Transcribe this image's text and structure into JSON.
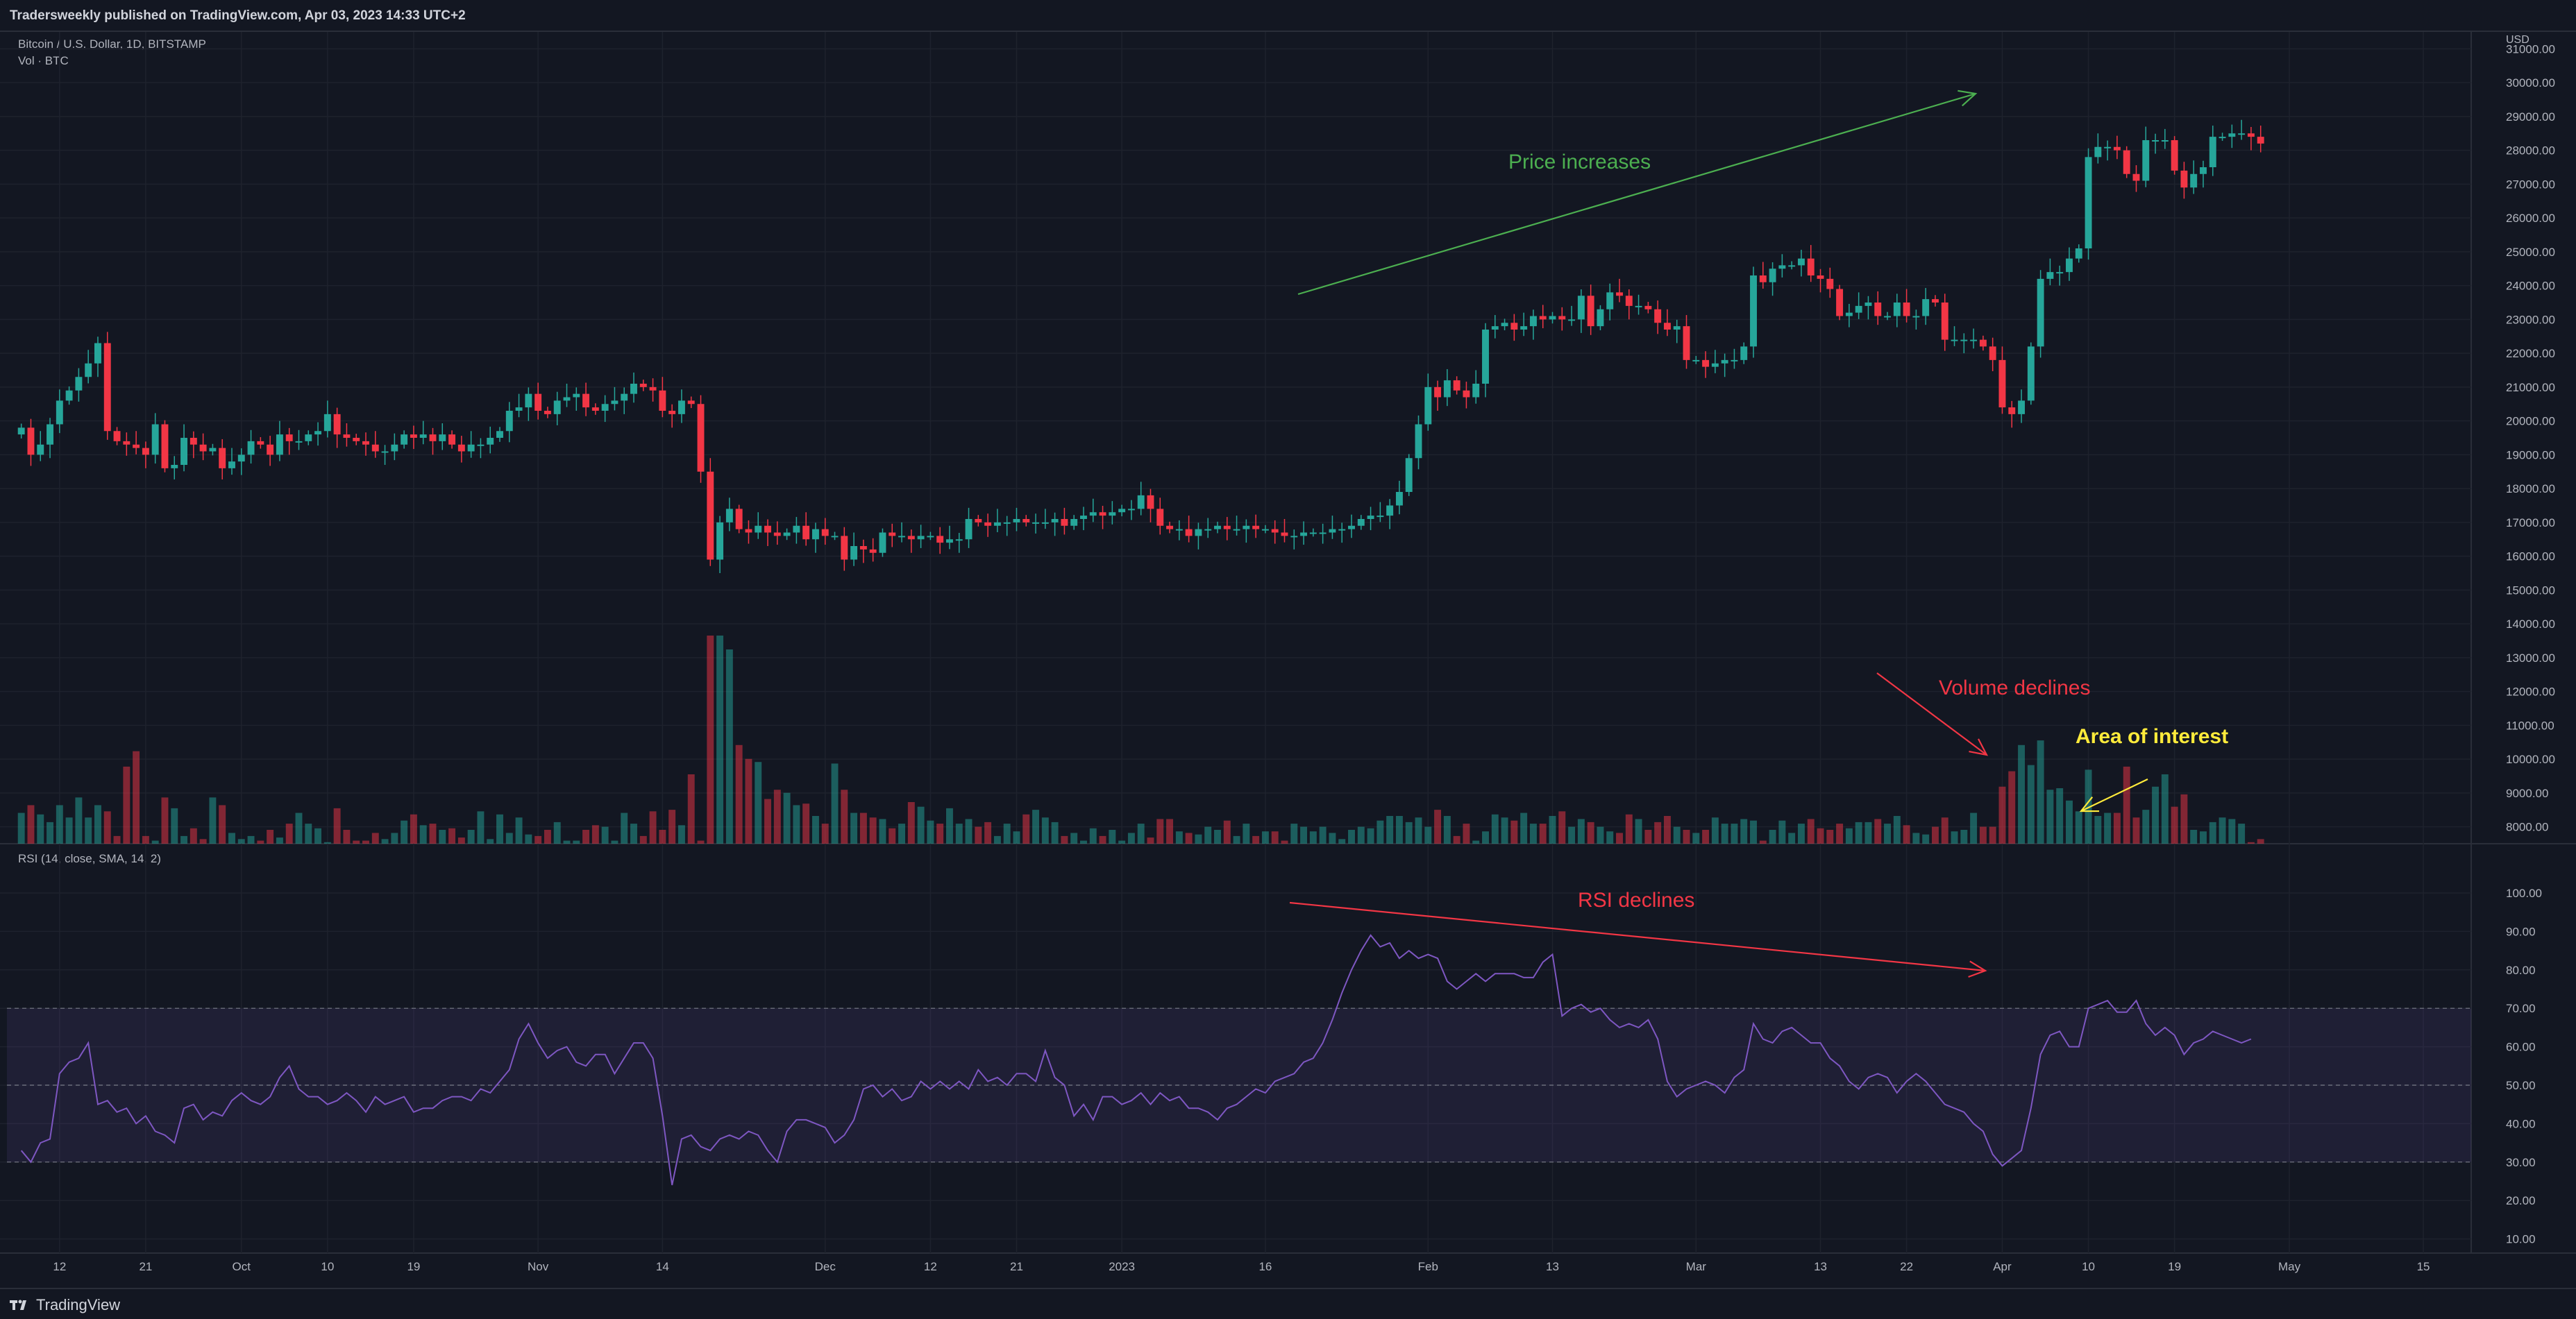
{
  "header": {
    "publish_text": "Tradersweekly published on TradingView.com, Apr 03, 2023 14:33 UTC+2"
  },
  "legend": {
    "symbol": "Bitcoin / U.S. Dollar, 1D, BITSTAMP",
    "volume": "Vol · BTC",
    "rsi": "RSI (14, close, SMA, 14, 2)"
  },
  "footer": {
    "logo_text": "TradingView"
  },
  "colors": {
    "background": "#131722",
    "up": "#26a69a",
    "down": "#f23645",
    "rsi_line": "#7e57c2",
    "annotation_green": "#4caf50",
    "annotation_red": "#f23645",
    "annotation_yellow": "#ffeb3b"
  },
  "chart_data": [
    {
      "type": "candlestick",
      "currency": "USD",
      "ylim": [
        7500,
        31500
      ],
      "y_ticks": [
        "31000.00",
        "30000.00",
        "29000.00",
        "28000.00",
        "27000.00",
        "26000.00",
        "25000.00",
        "24000.00",
        "23000.00",
        "22000.00",
        "21000.00",
        "20000.00",
        "19000.00",
        "18000.00",
        "17000.00",
        "16000.00",
        "15000.00",
        "14000.00",
        "13000.00",
        "12000.00",
        "11000.00",
        "10000.00",
        "9000.00",
        "8000.00"
      ],
      "y_tick_values": [
        31000,
        30000,
        29000,
        28000,
        27000,
        26000,
        25000,
        24000,
        23000,
        22000,
        21000,
        20000,
        19000,
        18000,
        17000,
        16000,
        15000,
        14000,
        13000,
        12000,
        11000,
        10000,
        9000,
        8000
      ],
      "x_ticks": [
        "12",
        "21",
        "Oct",
        "10",
        "19",
        "Nov",
        "14",
        "Dec",
        "12",
        "21",
        "2023",
        "16",
        "Feb",
        "13",
        "Mar",
        "13",
        "22",
        "Apr",
        "10",
        "19",
        "May",
        "15"
      ],
      "x_tick_days": [
        4,
        13,
        23,
        32,
        41,
        54,
        67,
        84,
        95,
        104,
        115,
        130,
        147,
        160,
        175,
        188,
        197,
        207,
        216,
        225,
        237,
        251
      ],
      "x_domain": [
        -1.5,
        256
      ],
      "closes": [
        19800,
        19000,
        19300,
        19900,
        20600,
        20900,
        21300,
        21700,
        22300,
        19700,
        19400,
        19300,
        19200,
        19000,
        19900,
        18600,
        18700,
        19500,
        19300,
        19100,
        19200,
        18600,
        18800,
        19000,
        19400,
        19300,
        19000,
        19600,
        19400,
        19400,
        19600,
        19700,
        20200,
        19600,
        19500,
        19400,
        19300,
        19100,
        19100,
        19300,
        19600,
        19500,
        19600,
        19400,
        19600,
        19300,
        19100,
        19300,
        19300,
        19500,
        19700,
        20300,
        20400,
        20800,
        20300,
        20200,
        20600,
        20700,
        20800,
        20400,
        20300,
        20500,
        20600,
        20800,
        21100,
        21000,
        20900,
        20300,
        20200,
        20600,
        20500,
        18500,
        15900,
        17000,
        17400,
        16800,
        16700,
        16900,
        16700,
        16600,
        16700,
        16900,
        16500,
        16800,
        16600,
        16600,
        15900,
        16300,
        16200,
        16100,
        16700,
        16600,
        16600,
        16500,
        16600,
        16600,
        16400,
        16500,
        16500,
        17100,
        17000,
        16900,
        17000,
        17000,
        17100,
        17000,
        17000,
        17000,
        17100,
        16900,
        17100,
        17200,
        17300,
        17200,
        17300,
        17400,
        17400,
        17800,
        17400,
        16900,
        16800,
        16800,
        16600,
        16800,
        16800,
        16900,
        16800,
        16800,
        16900,
        16800,
        16800,
        16700,
        16600,
        16600,
        16700,
        16700,
        16700,
        16800,
        16800,
        16900,
        17100,
        17200,
        17200,
        17500,
        17900,
        18900,
        19900,
        21000,
        20700,
        21200,
        20900,
        20700,
        21100,
        22700,
        22800,
        22900,
        22700,
        22800,
        23100,
        23000,
        23100,
        23000,
        23000,
        23700,
        22800,
        23300,
        23800,
        23700,
        23400,
        23400,
        23300,
        22900,
        22700,
        22800,
        21800,
        21800,
        21600,
        21700,
        21800,
        21800,
        22200,
        24300,
        24100,
        24500,
        24600,
        24600,
        24800,
        24300,
        24200,
        23900,
        23100,
        23200,
        23400,
        23500,
        23100,
        23100,
        23500,
        23100,
        23100,
        23600,
        23500,
        22400,
        22400,
        22400,
        22400,
        22200,
        21800,
        20400,
        20200,
        20600,
        22200,
        24200,
        24400,
        24400,
        24800,
        25100,
        27800,
        28100,
        28100,
        28000,
        27300,
        27100,
        28300,
        28300,
        28300,
        27400,
        26900,
        27300,
        27500,
        28400,
        28400,
        28500,
        28500,
        28400,
        28200
      ],
      "annotations": [
        "Price increases",
        "Volume declines",
        "Area of interest"
      ]
    },
    {
      "type": "bar",
      "series": [
        {
          "name": "Vol · BTC",
          "values": [
            9500,
            10000,
            9400,
            8900,
            10000,
            9200,
            10500,
            9200,
            10000,
            9600,
            8000,
            12500,
            13500,
            8000,
            7700,
            10500,
            9800,
            8000,
            8500,
            7800,
            10500,
            10000,
            8200,
            7800,
            8000,
            7700,
            8400,
            7900,
            8800,
            9500,
            8800,
            8500,
            7600,
            9800,
            8400,
            7700,
            7700,
            8200,
            7800,
            8200,
            9000,
            9400,
            8700,
            8800,
            8400,
            8500,
            7900,
            8400,
            9600,
            7800,
            9400,
            8200,
            9200,
            8100,
            8000,
            8400,
            8900,
            7700,
            7700,
            8400,
            8700,
            8600,
            7700,
            9500,
            8800,
            8000,
            9600,
            8400,
            9700,
            8700,
            12000,
            7700,
            21000,
            21000,
            20100,
            13900,
            13000,
            12800,
            10400,
            11000,
            10800,
            10000,
            10100,
            9300,
            8800,
            12700,
            11000,
            9500,
            9500,
            9200,
            9100,
            8500,
            8800,
            10200,
            9900,
            9000,
            8800,
            9800,
            8800,
            9100,
            8600,
            8900,
            8000,
            8800,
            8300,
            9400,
            9700,
            9200,
            8900,
            8000,
            8200,
            7700,
            8500,
            8000,
            8400,
            7700,
            8200,
            8800,
            7900,
            9100,
            9100,
            8300,
            8200,
            8100,
            8600,
            8400,
            9000,
            8000,
            8800,
            8000,
            8300,
            8300,
            7700,
            8800,
            8600,
            8300,
            8600,
            8200,
            7800,
            8400,
            8600,
            8500,
            9000,
            9300,
            9300,
            8900,
            9200,
            8600,
            9700,
            9300,
            8000,
            8800,
            7700,
            8300,
            9400,
            9200,
            9000,
            9500,
            8800,
            8800,
            9300,
            9600,
            8600,
            9100,
            8900,
            8600,
            8300,
            8200,
            9400,
            9100,
            8400,
            8900,
            9300,
            8600,
            8400,
            8200,
            8400,
            9200,
            8800,
            8800,
            9100,
            9000,
            7700,
            8400,
            9000,
            8200,
            8800,
            9100,
            8500,
            8400,
            8800,
            8500,
            8900,
            8900,
            9100,
            8800,
            9300,
            8700,
            8200,
            8100,
            8600,
            9200,
            8300,
            8400,
            9500,
            8600,
            8600,
            11200,
            12200,
            13900,
            12600,
            14200,
            11000,
            11100,
            10300,
            9600,
            12300,
            9300,
            9500,
            9500,
            12500,
            9200,
            9700,
            11200,
            12000,
            9900,
            10700,
            8400,
            8300,
            8900,
            9200,
            9100,
            8800,
            7600,
            7800,
            8000
          ]
        }
      ],
      "ylim": [
        7500,
        21000
      ]
    },
    {
      "type": "line",
      "series": [
        {
          "name": "RSI",
          "values": [
            33,
            30,
            35,
            36,
            53,
            56,
            57,
            61,
            45,
            46,
            43,
            44,
            40,
            42,
            38,
            37,
            35,
            44,
            45,
            41,
            43,
            42,
            46,
            48,
            46,
            45,
            47,
            52,
            55,
            49,
            47,
            47,
            45,
            46,
            48,
            46,
            43,
            47,
            45,
            46,
            47,
            43,
            44,
            44,
            46,
            47,
            47,
            46,
            49,
            48,
            51,
            54,
            62,
            66,
            61,
            57,
            59,
            60,
            56,
            55,
            58,
            58,
            53,
            57,
            61,
            61,
            57,
            42,
            24,
            36,
            37,
            34,
            33,
            36,
            37,
            36,
            38,
            37,
            33,
            30,
            38,
            41,
            41,
            40,
            39,
            35,
            37,
            41,
            49,
            50,
            47,
            49,
            46,
            47,
            51,
            49,
            51,
            49,
            51,
            49,
            54,
            51,
            52,
            50,
            53,
            53,
            51,
            59,
            52,
            50,
            42,
            45,
            41,
            47,
            47,
            45,
            46,
            48,
            45,
            48,
            46,
            47,
            44,
            44,
            43,
            41,
            44,
            45,
            47,
            49,
            48,
            51,
            52,
            53,
            56,
            57,
            61,
            67,
            74,
            80,
            85,
            89,
            86,
            87,
            83,
            85,
            83,
            84,
            83,
            77,
            75,
            77,
            79,
            77,
            79,
            79,
            79,
            78,
            78,
            82,
            84,
            68,
            70,
            71,
            69,
            70,
            67,
            65,
            66,
            65,
            67,
            62,
            51,
            47,
            49,
            50,
            51,
            50,
            48,
            52,
            54,
            66,
            62,
            61,
            64,
            65,
            63,
            61,
            61,
            57,
            55,
            51,
            49,
            52,
            53,
            52,
            48,
            51,
            53,
            51,
            48,
            45,
            44,
            43,
            40,
            38,
            32,
            29,
            31,
            33,
            44,
            58,
            63,
            64,
            60,
            60,
            70,
            71,
            72,
            69,
            69,
            72,
            66,
            63,
            65,
            63,
            58,
            61,
            62,
            64,
            63,
            62,
            61,
            62
          ]
        }
      ],
      "ylim": [
        0,
        100
      ],
      "y_ticks": [
        "100.00",
        "90.00",
        "80.00",
        "70.00",
        "60.00",
        "50.00",
        "40.00",
        "30.00",
        "20.00",
        "10.00"
      ],
      "bands": [
        30,
        50,
        70
      ],
      "annotations": [
        "RSI declines"
      ]
    }
  ]
}
